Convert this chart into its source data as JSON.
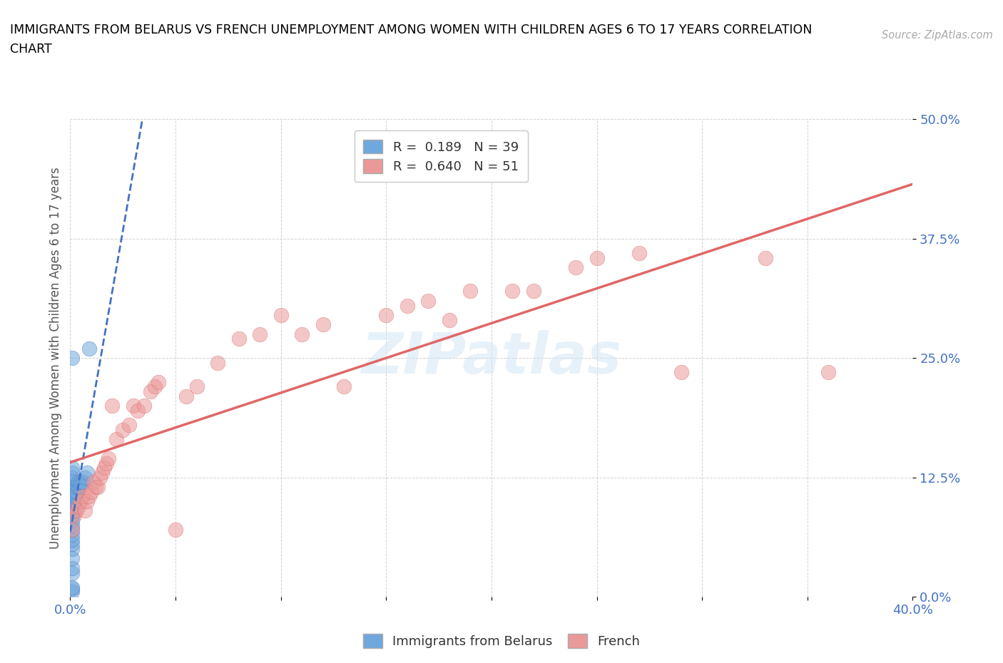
{
  "title_line1": "IMMIGRANTS FROM BELARUS VS FRENCH UNEMPLOYMENT AMONG WOMEN WITH CHILDREN AGES 6 TO 17 YEARS CORRELATION",
  "title_line2": "CHART",
  "source_text": "Source: ZipAtlas.com",
  "ylabel": "Unemployment Among Women with Children Ages 6 to 17 years",
  "xmin": 0.0,
  "xmax": 0.4,
  "ymin": 0.0,
  "ymax": 0.5,
  "ytick_positions": [
    0.0,
    0.125,
    0.25,
    0.375,
    0.5
  ],
  "ytick_labels": [
    "0.0%",
    "12.5%",
    "25.0%",
    "37.5%",
    "50.0%"
  ],
  "xtick_positions": [
    0.0,
    0.05,
    0.1,
    0.15,
    0.2,
    0.25,
    0.3,
    0.35,
    0.4
  ],
  "xtick_labels": [
    "0.0%",
    "",
    "",
    "",
    "",
    "",
    "",
    "",
    "40.0%"
  ],
  "legend_r1": "R =  0.189   N = 39",
  "legend_r2": "R =  0.640   N = 51",
  "color_belarus": "#6fa8dc",
  "color_french": "#ea9999",
  "color_line_belarus": "#4472c4",
  "color_line_french": "#e06666",
  "watermark": "ZIPatlas",
  "scatter_belarus": [
    [
      0.001,
      0.025
    ],
    [
      0.001,
      0.03
    ],
    [
      0.001,
      0.04
    ],
    [
      0.001,
      0.05
    ],
    [
      0.001,
      0.055
    ],
    [
      0.001,
      0.06
    ],
    [
      0.001,
      0.065
    ],
    [
      0.001,
      0.07
    ],
    [
      0.001,
      0.075
    ],
    [
      0.001,
      0.08
    ],
    [
      0.001,
      0.085
    ],
    [
      0.001,
      0.09
    ],
    [
      0.001,
      0.095
    ],
    [
      0.001,
      0.1
    ],
    [
      0.001,
      0.11
    ],
    [
      0.001,
      0.115
    ],
    [
      0.001,
      0.12
    ],
    [
      0.001,
      0.125
    ],
    [
      0.001,
      0.13
    ],
    [
      0.001,
      0.135
    ],
    [
      0.002,
      0.09
    ],
    [
      0.002,
      0.1
    ],
    [
      0.002,
      0.105
    ],
    [
      0.002,
      0.11
    ],
    [
      0.003,
      0.105
    ],
    [
      0.003,
      0.11
    ],
    [
      0.003,
      0.115
    ],
    [
      0.004,
      0.115
    ],
    [
      0.004,
      0.12
    ],
    [
      0.005,
      0.115
    ],
    [
      0.005,
      0.12
    ],
    [
      0.006,
      0.12
    ],
    [
      0.007,
      0.125
    ],
    [
      0.008,
      0.13
    ],
    [
      0.009,
      0.26
    ],
    [
      0.001,
      0.005
    ],
    [
      0.001,
      0.008
    ],
    [
      0.001,
      0.01
    ],
    [
      0.001,
      0.25
    ]
  ],
  "scatter_french": [
    [
      0.001,
      0.07
    ],
    [
      0.002,
      0.085
    ],
    [
      0.003,
      0.09
    ],
    [
      0.004,
      0.095
    ],
    [
      0.005,
      0.1
    ],
    [
      0.006,
      0.105
    ],
    [
      0.007,
      0.09
    ],
    [
      0.008,
      0.1
    ],
    [
      0.009,
      0.105
    ],
    [
      0.01,
      0.11
    ],
    [
      0.011,
      0.12
    ],
    [
      0.012,
      0.115
    ],
    [
      0.013,
      0.115
    ],
    [
      0.014,
      0.125
    ],
    [
      0.015,
      0.13
    ],
    [
      0.016,
      0.135
    ],
    [
      0.017,
      0.14
    ],
    [
      0.018,
      0.145
    ],
    [
      0.02,
      0.2
    ],
    [
      0.022,
      0.165
    ],
    [
      0.025,
      0.175
    ],
    [
      0.028,
      0.18
    ],
    [
      0.03,
      0.2
    ],
    [
      0.032,
      0.195
    ],
    [
      0.035,
      0.2
    ],
    [
      0.038,
      0.215
    ],
    [
      0.04,
      0.22
    ],
    [
      0.042,
      0.225
    ],
    [
      0.05,
      0.07
    ],
    [
      0.055,
      0.21
    ],
    [
      0.06,
      0.22
    ],
    [
      0.07,
      0.245
    ],
    [
      0.08,
      0.27
    ],
    [
      0.09,
      0.275
    ],
    [
      0.1,
      0.295
    ],
    [
      0.11,
      0.275
    ],
    [
      0.12,
      0.285
    ],
    [
      0.13,
      0.22
    ],
    [
      0.15,
      0.295
    ],
    [
      0.16,
      0.305
    ],
    [
      0.17,
      0.31
    ],
    [
      0.18,
      0.29
    ],
    [
      0.19,
      0.32
    ],
    [
      0.21,
      0.32
    ],
    [
      0.22,
      0.32
    ],
    [
      0.24,
      0.345
    ],
    [
      0.25,
      0.355
    ],
    [
      0.27,
      0.36
    ],
    [
      0.29,
      0.235
    ],
    [
      0.33,
      0.355
    ],
    [
      0.36,
      0.235
    ]
  ]
}
